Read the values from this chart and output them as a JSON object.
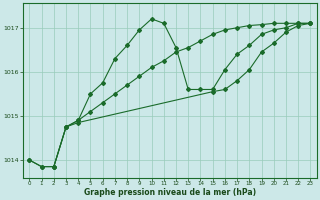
{
  "xlabel": "Graphe pression niveau de la mer (hPa)",
  "bg_color": "#cce8e8",
  "grid_color": "#99ccbb",
  "line_color": "#1a6b2a",
  "x_ticks": [
    0,
    1,
    2,
    3,
    4,
    5,
    6,
    7,
    8,
    9,
    10,
    11,
    12,
    13,
    14,
    15,
    16,
    17,
    18,
    19,
    20,
    21,
    22,
    23
  ],
  "ylim": [
    1013.6,
    1017.55
  ],
  "yticks": [
    1014,
    1015,
    1016,
    1017
  ],
  "line2": {
    "x": [
      0,
      1,
      2,
      3,
      4,
      5,
      6,
      7,
      8,
      9,
      10,
      11,
      12,
      13,
      14,
      15,
      16,
      17,
      18,
      19,
      20,
      21,
      22,
      23
    ],
    "y": [
      1014.0,
      1013.85,
      1013.85,
      1014.75,
      1014.9,
      1015.5,
      1015.75,
      1016.3,
      1016.6,
      1016.95,
      1017.2,
      1017.1,
      1016.55,
      1015.6,
      1015.6,
      1015.6,
      1016.05,
      1016.4,
      1016.6,
      1016.85,
      1016.95,
      1017.0,
      1017.1,
      1017.1
    ]
  },
  "line1": {
    "x": [
      0,
      1,
      2,
      3,
      4,
      15,
      16,
      17,
      18,
      19,
      20,
      21,
      22,
      23
    ],
    "y": [
      1014.0,
      1013.85,
      1013.85,
      1014.75,
      1014.85,
      1015.55,
      1015.6,
      1015.8,
      1016.05,
      1016.45,
      1016.65,
      1016.9,
      1017.05,
      1017.1
    ]
  },
  "line3": {
    "x": [
      2,
      3,
      4,
      5,
      6,
      7,
      8,
      9,
      10,
      11,
      12,
      13,
      14,
      15,
      16,
      17,
      18,
      19,
      20,
      21,
      22,
      23
    ],
    "y": [
      1013.85,
      1014.75,
      1014.9,
      1015.1,
      1015.3,
      1015.5,
      1015.7,
      1015.9,
      1016.1,
      1016.25,
      1016.45,
      1016.55,
      1016.7,
      1016.85,
      1016.95,
      1017.0,
      1017.05,
      1017.07,
      1017.1,
      1017.1,
      1017.1,
      1017.1
    ]
  },
  "figure_bg": "#cce8e8"
}
